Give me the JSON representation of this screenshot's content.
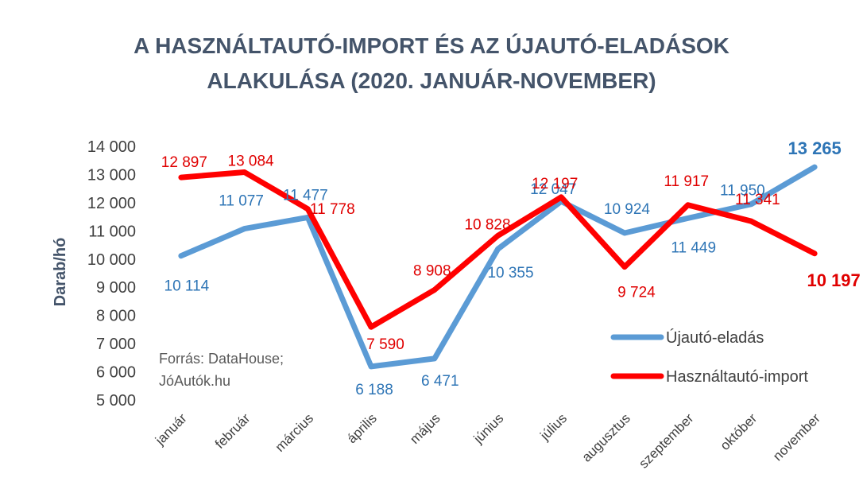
{
  "chart_data": {
    "type": "line",
    "title_lines": [
      "A HASZNÁLTAUTÓ-IMPORT ÉS AZ ÚJAUTÓ-ELADÁSOK",
      "ALAKULÁSA (2020. JANUÁR-NOVEMBER)"
    ],
    "ylabel": "Darab/hó",
    "xlabel": "",
    "ylim": [
      5000,
      14000
    ],
    "yticks": [
      5000,
      6000,
      7000,
      8000,
      9000,
      10000,
      11000,
      12000,
      13000,
      14000
    ],
    "ytick_labels": [
      "5 000",
      "6 000",
      "7 000",
      "8 000",
      "9 000",
      "10 000",
      "11 000",
      "12 000",
      "13 000",
      "14 000"
    ],
    "grid": false,
    "legend_position": "bottom-right",
    "categories": [
      "január",
      "február",
      "március",
      "április",
      "május",
      "június",
      "július",
      "augusztus",
      "szeptember",
      "október",
      "november"
    ],
    "series": [
      {
        "name": "Újautó-eladás",
        "color": "#5b9bd5",
        "label_color": "#2e75b6",
        "values": [
          10114,
          11077,
          11477,
          6188,
          6471,
          10355,
          12047,
          10924,
          11449,
          11950,
          13265
        ],
        "labels": [
          "10 114",
          "11 077",
          "11 477",
          "6 188",
          "6 471",
          "10 355",
          "12 047",
          "10 924",
          "11 449",
          "11 950",
          "13 265"
        ]
      },
      {
        "name": "Használtautó-import",
        "color": "#ff0000",
        "label_color": "#e00000",
        "values": [
          12897,
          13084,
          11778,
          7590,
          8908,
          10828,
          12197,
          9724,
          11917,
          11341,
          10197
        ],
        "labels": [
          "12 897",
          "13 084",
          "11 778",
          "7 590",
          "8 908",
          "10 828",
          "12 197",
          "9 724",
          "11 917",
          "11 341",
          "10 197"
        ]
      }
    ],
    "source_lines": [
      "Forrás: DataHouse;",
      "JóAutók.hu"
    ]
  }
}
